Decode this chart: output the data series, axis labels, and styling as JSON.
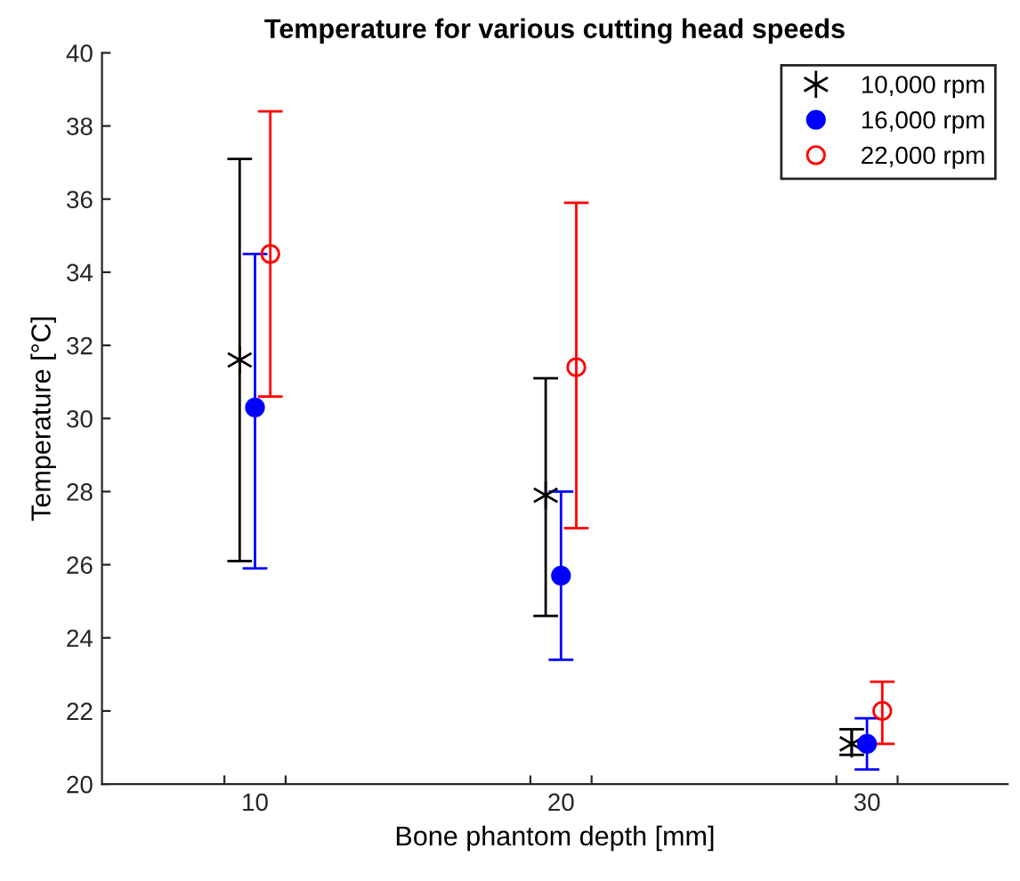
{
  "chart_data": {
    "type": "scatter",
    "title": "Temperature for various cutting head speeds",
    "xlabel": "Bone phantom depth [mm]",
    "ylabel": "Temperature [°C]",
    "xlim": [
      5,
      34.6
    ],
    "xticks": [
      {
        "value": 9,
        "label": null
      },
      {
        "value": 10,
        "label": "10"
      },
      {
        "value": 11,
        "label": null
      },
      {
        "value": 19,
        "label": null
      },
      {
        "value": 20,
        "label": "20"
      },
      {
        "value": 21,
        "label": null
      },
      {
        "value": 29,
        "label": null
      },
      {
        "value": 30,
        "label": "30"
      },
      {
        "value": 31,
        "label": null
      }
    ],
    "ylim": [
      20,
      40
    ],
    "yticks": [
      20,
      22,
      24,
      26,
      28,
      30,
      32,
      34,
      36,
      38,
      40
    ],
    "grid": false,
    "legend": "top right",
    "series": [
      {
        "name": "10,000 rpm",
        "color": "#000000",
        "marker": "cross",
        "x": [
          9.5,
          19.5,
          29.5
        ],
        "values": [
          31.6,
          27.9,
          21.1
        ],
        "errors": [
          [
            26.1,
            37.1
          ],
          [
            24.6,
            31.1
          ],
          [
            20.8,
            21.5
          ]
        ]
      },
      {
        "name": "16,000 rpm",
        "color": "#0000ff",
        "marker": "circle",
        "x": [
          10,
          20,
          30
        ],
        "values": [
          30.3,
          25.7,
          21.1
        ],
        "errors": [
          [
            25.9,
            34.5
          ],
          [
            23.4,
            28.0
          ],
          [
            20.4,
            21.8
          ]
        ]
      },
      {
        "name": "22,000 rpm",
        "color": "#ff0000",
        "marker": "open circle",
        "x": [
          10.5,
          20.5,
          30.5
        ],
        "values": [
          34.5,
          31.4,
          22.0
        ],
        "errors": [
          [
            30.6,
            38.4
          ],
          [
            27.0,
            35.9
          ],
          [
            21.1,
            22.8
          ]
        ]
      }
    ]
  }
}
